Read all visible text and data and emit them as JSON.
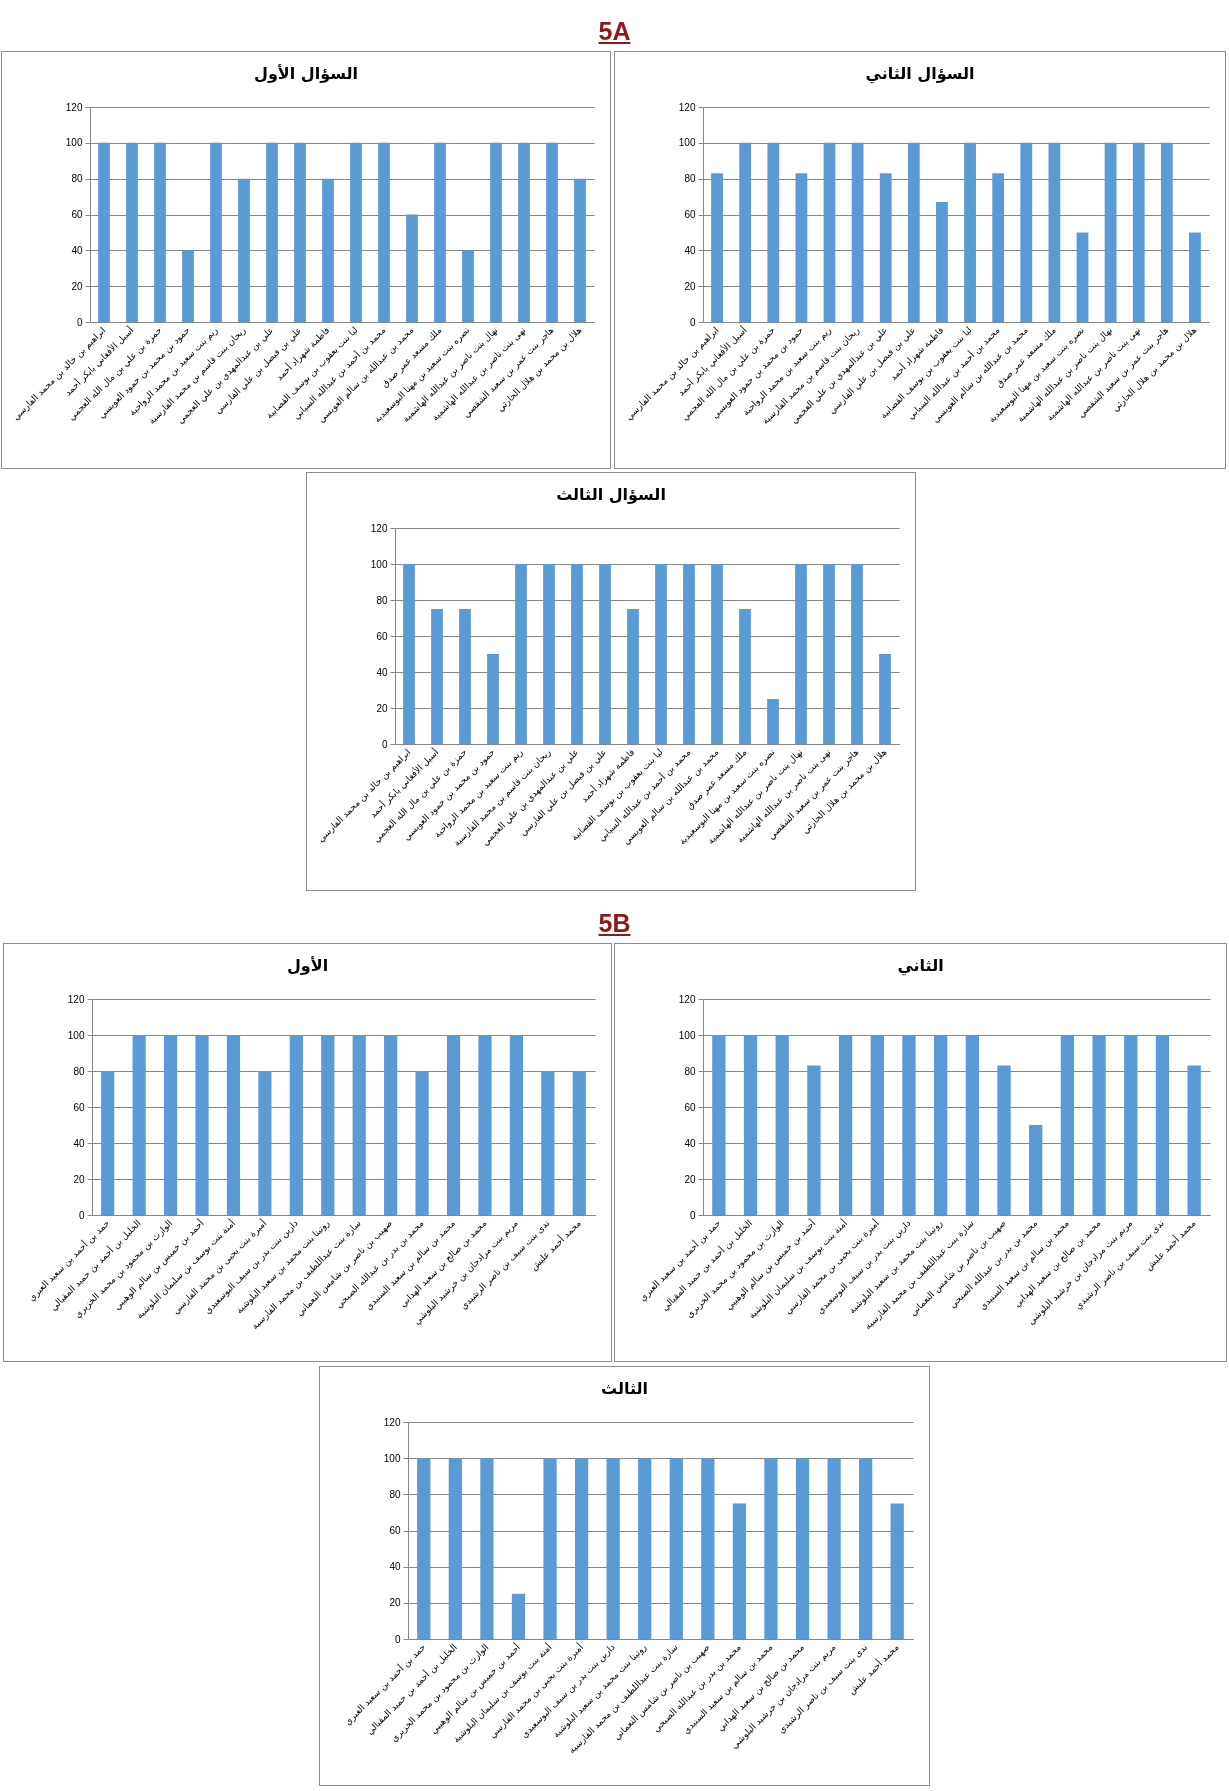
{
  "chart_data": [
    {
      "type": "bar",
      "title": "السؤال الأول",
      "annotations": [
        "5A"
      ],
      "categories": [
        "ابراهيم بن خالد بن محمد الفارسي",
        "أسيل الأفغاني بابكر أحمد",
        "حمزة بن علي بن مال الله العجمي",
        "حمود بن محمد بن حمود العويسي",
        "ريم بنت سعيد بن محمد الرواحية",
        "ريحان بنت قاسم بن محمد الفارسية",
        "علي بن عبدالمهدي بن علي العجمي",
        "علي بن فيصل بن علي الفارسي",
        "فاطمة شهزاد أحمد",
        "ليا بنت يعقوب بن يوسف القصابية",
        "محمد بن أحمد بن عبدالله السيابي",
        "محمد بن عبدالله بن سالم العويسي",
        "ملك مسعد عمر صدق",
        "نصره بنت سعيد بن مهنا البوسعيدية",
        "نهال بنت ناصر بن عبدالله الهاشمية",
        "نهى بنت ناصر بن عبدالله الهاشمية",
        "هاجر بنت عمر بن سعيد الشقصي",
        "هلال بن محمد بن هلال الحارثي"
      ],
      "values": [
        100,
        100,
        100,
        40,
        100,
        80,
        100,
        100,
        80,
        100,
        100,
        60,
        100,
        40,
        100,
        100,
        100,
        80
      ],
      "color": "#5b9bd5",
      "ylim": [
        0,
        120
      ],
      "yticks": [
        0,
        20,
        40,
        60,
        80,
        100,
        120
      ],
      "grid": "y"
    },
    {
      "type": "bar",
      "title": "السؤال الثاني",
      "categories": [
        "ابراهيم بن خالد بن محمد الفارسي",
        "أسيل الأفغاني بابكر أحمد",
        "حمزة بن علي بن مال الله العجمي",
        "حمود بن محمد بن حمود العويسي",
        "ريم بنت سعيد بن محمد الرواحية",
        "ريحان بنت قاسم بن محمد الفارسية",
        "علي بن عبدالمهدي بن علي العجمي",
        "علي بن فيصل بن علي الفارسي",
        "فاطمة شهزاد أحمد",
        "ليا بنت يعقوب بن يوسف القصابية",
        "محمد بن أحمد بن عبدالله السيابي",
        "محمد بن عبدالله بن سالم العويسي",
        "ملك مسعد عمر صدق",
        "نصره بنت سعيد بن مهنا البوسعيدية",
        "نهال بنت ناصر بن عبدالله الهاشمية",
        "نهى بنت ناصر بن عبدالله الهاشمية",
        "هاجر بنت عمر بن سعيد الشقصي",
        "هلال بن محمد بن هلال الحارثي"
      ],
      "values": [
        83,
        100,
        100,
        83,
        100,
        100,
        83,
        100,
        67,
        100,
        83,
        100,
        100,
        50,
        100,
        100,
        100,
        50
      ],
      "color": "#5b9bd5",
      "ylim": [
        0,
        120
      ],
      "yticks": [
        0,
        20,
        40,
        60,
        80,
        100,
        120
      ],
      "grid": "y"
    },
    {
      "type": "bar",
      "title": "السؤال الثالث",
      "categories": [
        "ابراهيم بن خالد بن محمد الفارسي",
        "أسيل الأفغاني بابكر أحمد",
        "حمزة بن علي بن مال الله العجمي",
        "حمود بن محمد بن حمود العويسي",
        "ريم بنت سعيد بن محمد الرواحية",
        "ريحان بنت قاسم بن محمد الفارسية",
        "علي بن عبدالمهدي بن علي العجمي",
        "علي بن فيصل بن علي الفارسي",
        "فاطمة شهزاد أحمد",
        "ليا بنت يعقوب بن يوسف القصابية",
        "محمد بن أحمد بن عبدالله السيابي",
        "محمد بن عبدالله بن سالم العويسي",
        "ملك مسعد عمر صدق",
        "نصره بنت سعيد بن مهنا البوسعيدية",
        "نهال بنت ناصر بن عبدالله الهاشمية",
        "نهى بنت ناصر بن عبدالله الهاشمية",
        "هاجر بنت عمر بن سعيد الشقصي",
        "هلال بن محمد بن هلال الحارثي"
      ],
      "values": [
        100,
        75,
        75,
        50,
        100,
        100,
        100,
        100,
        75,
        100,
        100,
        100,
        75,
        25,
        100,
        100,
        100,
        50
      ],
      "color": "#5b9bd5",
      "ylim": [
        0,
        120
      ],
      "yticks": [
        0,
        20,
        40,
        60,
        80,
        100,
        120
      ],
      "grid": "y"
    },
    {
      "type": "bar",
      "title": "الأول",
      "annotations": [
        "5B"
      ],
      "categories": [
        "حمد بن أحمد بن سعيد العبري",
        "الخليل بن أحمد بن حميد المقبالي",
        "الوارث بن محمود بن محمد الخزيري",
        "أحمد بن خميس بن سالم الوهيبي",
        "أمنة بنت يوسف بن سليمان البلوشية",
        "أميرة بنت يحيى بن محمد الفارسي",
        "دارين بنت بدر بن سيف البوسعيدي",
        "روتينا بنت محمد بن سعيد البلوشية",
        "سارة بنت عبداللطيف بن محمد الفارسية",
        "صهيب بن ناصر بن شامس النعماني",
        "محمد بن بدر بن عبدالله الصبحي",
        "محمد بن سالم بن سعيد السنيدي",
        "محمد بن صالح بن سعيد الهدابي",
        "مريم بنت مرادجان بن خرشيد البلوشي",
        "ندى بنت سيف بن ناصر الرشيدي",
        "محمد أحمد عليش"
      ],
      "values": [
        80,
        100,
        100,
        100,
        100,
        80,
        100,
        100,
        100,
        100,
        80,
        100,
        100,
        100,
        80,
        80
      ],
      "color": "#5b9bd5",
      "ylim": [
        0,
        120
      ],
      "yticks": [
        0,
        20,
        40,
        60,
        80,
        100,
        120
      ],
      "grid": "y"
    },
    {
      "type": "bar",
      "title": "الثاني",
      "categories": [
        "حمد بن أحمد بن سعيد العبري",
        "الخليل بن أحمد بن حميد المقبالي",
        "الوارث بن محمود بن محمد الخزيري",
        "أحمد بن خميس بن سالم الوهيبي",
        "أمنة بنت يوسف بن سليمان البلوشية",
        "أميرة بنت يحيى بن محمد الفارسي",
        "دارين بنت بدر بن سيف البوسعيدي",
        "روتينا بنت محمد بن سعيد البلوشية",
        "سارة بنت عبداللطيف بن محمد الفارسية",
        "صهيب بن ناصر بن شامس النعماني",
        "محمد بن بدر بن عبدالله الصبحي",
        "محمد بن سالم بن سعيد السنيدي",
        "محمد بن صالح بن سعيد الهدابي",
        "مريم بنت مرادجان بن خرشيد البلوشي",
        "ندى بنت سيف بن ناصر الرشيدي",
        "محمد أحمد عليش"
      ],
      "values": [
        100,
        100,
        100,
        83,
        100,
        100,
        100,
        100,
        100,
        83,
        50,
        100,
        100,
        100,
        100,
        83
      ],
      "color": "#5b9bd5",
      "ylim": [
        0,
        120
      ],
      "yticks": [
        0,
        20,
        40,
        60,
        80,
        100,
        120
      ],
      "grid": "y"
    },
    {
      "type": "bar",
      "title": "الثالث",
      "categories": [
        "حمد بن أحمد بن سعيد العبري",
        "الخليل بن أحمد بن حميد المقبالي",
        "الوارث بن محمود بن محمد الخزيري",
        "أحمد بن خميس بن سالم الوهيبي",
        "أمنة بنت يوسف بن سليمان البلوشية",
        "أميرة بنت يحيى بن محمد الفارسي",
        "دارين بنت بدر بن سيف البوسعيدي",
        "روتينا بنت محمد بن سعيد البلوشية",
        "سارة بنت عبداللطيف بن محمد الفارسية",
        "صهيب بن ناصر بن شامس النعماني",
        "محمد بن بدر بن عبدالله الصبحي",
        "محمد بن سالم بن سعيد السنيدي",
        "محمد بن صالح بن سعيد الهدابي",
        "مريم بنت مرادجان بن خرشيد البلوشي",
        "ندى بنت سيف بن ناصر الرشيدي",
        "محمد أحمد عليش"
      ],
      "values": [
        100,
        100,
        100,
        25,
        100,
        100,
        100,
        100,
        100,
        100,
        75,
        100,
        100,
        100,
        100,
        75
      ],
      "color": "#5b9bd5",
      "ylim": [
        0,
        120
      ],
      "yticks": [
        0,
        20,
        40,
        60,
        80,
        100,
        120
      ],
      "grid": "y"
    }
  ]
}
